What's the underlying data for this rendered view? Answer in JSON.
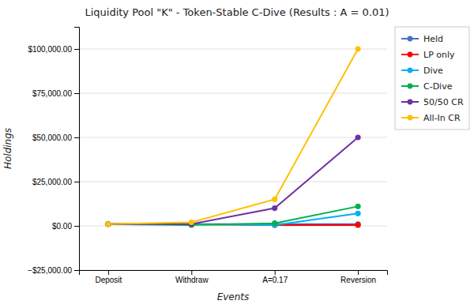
{
  "chart_data": {
    "type": "line",
    "title": "Liquidity Pool \"K\" - Token-Stable C-Dive (Results : A = 0.01)",
    "x_label": "Events",
    "y_label": "Holdings",
    "categories": [
      "Deposit",
      "Withdraw",
      "A=0.17",
      "Reversion"
    ],
    "series": [
      {
        "name": "Held",
        "color": "#4472C4",
        "marker": "circle",
        "values": [
          1000,
          1000,
          1000,
          1000
        ]
      },
      {
        "name": "LP only",
        "color": "#FF0000",
        "marker": "circle",
        "values": [
          1000,
          1000,
          500,
          500
        ]
      },
      {
        "name": "Dive",
        "color": "#00B0F0",
        "marker": "circle",
        "values": [
          1000,
          1000,
          500,
          7000
        ]
      },
      {
        "name": "C-Dive",
        "color": "#00B050",
        "marker": "circle",
        "values": [
          1000,
          500,
          1500,
          11000
        ]
      },
      {
        "name": "50/50 CR",
        "color": "#7030A0",
        "marker": "circle",
        "values": [
          1000,
          1000,
          10000,
          50000
        ]
      },
      {
        "name": "All-In CR",
        "color": "#FFC000",
        "marker": "circle",
        "values": [
          1000,
          2000,
          15000,
          100000
        ]
      }
    ],
    "ylim": [
      -25000,
      112500
    ],
    "yticks": [
      {
        "value": -25000,
        "label": "−$25,000.00"
      },
      {
        "value": 0,
        "label": "$0.00"
      },
      {
        "value": 25000,
        "label": "$25,000.00"
      },
      {
        "value": 50000,
        "label": "$50,000.00"
      },
      {
        "value": 75000,
        "label": "$75,000.00"
      },
      {
        "value": 100000,
        "label": "$100,000.00"
      }
    ],
    "grid": true,
    "legend": "right"
  }
}
